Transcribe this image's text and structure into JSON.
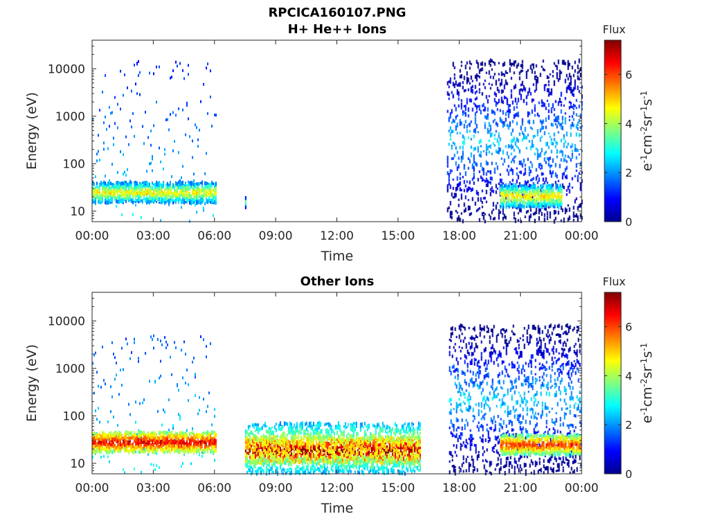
{
  "page_title": "RPCICA160107.PNG",
  "colors": {
    "colormap": [
      "#00008f",
      "#0000ff",
      "#0080ff",
      "#00ffff",
      "#80ff80",
      "#ffff00",
      "#ff8000",
      "#ff0000",
      "#800000"
    ],
    "axes": "#262626"
  },
  "chart_data": [
    {
      "type": "heatmap",
      "title": "H+ He++ Ions",
      "xlabel": "Time",
      "ylabel": "Energy (eV)",
      "yscale": "log",
      "xlim_hours": [
        0,
        24
      ],
      "ylim": [
        6,
        40000
      ],
      "xticks": [
        "00:00",
        "03:00",
        "06:00",
        "09:00",
        "12:00",
        "15:00",
        "18:00",
        "21:00",
        "00:00"
      ],
      "yticks": [
        "10",
        "100",
        "1000",
        "10000"
      ],
      "colorbar": {
        "title": "Flux",
        "label": "eV-1cm-2sr-1s-1",
        "range": [
          0,
          7.4
        ],
        "ticks": [
          "0",
          "2",
          "4",
          "6"
        ]
      },
      "regions": [
        {
          "t_start": 0.0,
          "t_end": 6.1,
          "e_min": 6,
          "e_max": 15000,
          "flux": 1.2,
          "note": "sparse high-energy"
        },
        {
          "t_start": 0.0,
          "t_end": 6.1,
          "e_min": 15,
          "e_max": 40,
          "flux": 3.6
        },
        {
          "t_start": 7.5,
          "t_end": 7.5,
          "e_min": 12,
          "e_max": 20,
          "flux": 2.8
        },
        {
          "t_start": 17.4,
          "t_end": 24.0,
          "e_min": 6,
          "e_max": 15000,
          "flux": 1.2
        },
        {
          "t_start": 20.0,
          "t_end": 23.0,
          "e_min": 12,
          "e_max": 35,
          "flux": 3.8
        }
      ]
    },
    {
      "type": "heatmap",
      "title": "Other Ions",
      "xlabel": "Time",
      "ylabel": "Energy (eV)",
      "yscale": "log",
      "xlim_hours": [
        0,
        24
      ],
      "ylim": [
        6,
        40000
      ],
      "xticks": [
        "00:00",
        "03:00",
        "06:00",
        "09:00",
        "12:00",
        "15:00",
        "18:00",
        "21:00",
        "00:00"
      ],
      "yticks": [
        "10",
        "100",
        "1000",
        "10000"
      ],
      "colorbar": {
        "title": "Flux",
        "label": "eV-1cm-2sr-1s-1",
        "range": [
          0,
          7.4
        ],
        "ticks": [
          "0",
          "2",
          "4",
          "6"
        ]
      },
      "regions": [
        {
          "t_start": 0.0,
          "t_end": 6.1,
          "e_min": 6,
          "e_max": 5000,
          "flux": 1.5,
          "note": "sparse"
        },
        {
          "t_start": 0.0,
          "t_end": 6.1,
          "e_min": 17,
          "e_max": 45,
          "flux": 5.5
        },
        {
          "t_start": 7.5,
          "t_end": 16.1,
          "e_min": 10,
          "e_max": 35,
          "flux": 6.3
        },
        {
          "t_start": 7.5,
          "t_end": 16.1,
          "e_min": 6,
          "e_max": 70,
          "flux": 4.0
        },
        {
          "t_start": 17.5,
          "t_end": 24.0,
          "e_min": 6,
          "e_max": 8000,
          "flux": 1.3
        },
        {
          "t_start": 20.0,
          "t_end": 24.0,
          "e_min": 15,
          "e_max": 40,
          "flux": 5.0
        }
      ]
    }
  ]
}
